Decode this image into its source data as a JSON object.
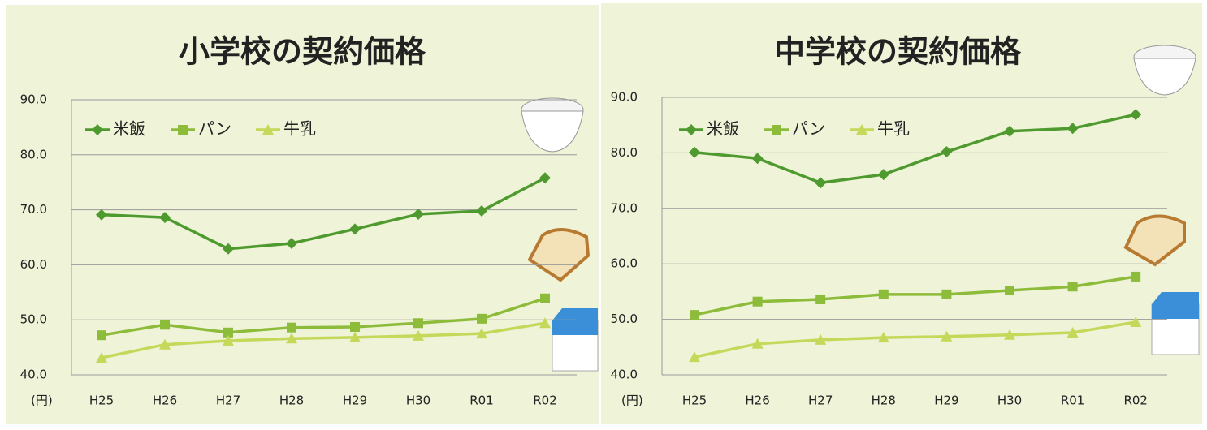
{
  "chart_data": [
    {
      "type": "line",
      "title": "小学校の契約価格",
      "unit_label": "(円)",
      "categories": [
        "H25",
        "H26",
        "H27",
        "H28",
        "H29",
        "H30",
        "R01",
        "R02"
      ],
      "ylim": [
        40,
        90
      ],
      "yticks": [
        {
          "value": 40,
          "label": "40.0"
        },
        {
          "value": 50,
          "label": "50.0"
        },
        {
          "value": 60,
          "label": "60.0"
        },
        {
          "value": 70,
          "label": "70.0"
        },
        {
          "value": 80,
          "label": "80.0"
        },
        {
          "value": 90,
          "label": "90.0"
        }
      ],
      "grid": true,
      "series": [
        {
          "name": "米飯",
          "color": "#4e9a2e",
          "marker": "diamond",
          "values": [
            69.1,
            68.6,
            62.9,
            63.9,
            66.5,
            69.2,
            69.8,
            75.8
          ]
        },
        {
          "name": "パン",
          "color": "#8dbb3a",
          "marker": "square",
          "values": [
            47.2,
            49.1,
            47.7,
            48.6,
            48.7,
            49.4,
            50.2,
            53.9
          ]
        },
        {
          "name": "牛乳",
          "color": "#c5d85a",
          "marker": "triangle",
          "values": [
            43.1,
            45.5,
            46.2,
            46.6,
            46.8,
            47.1,
            47.5,
            49.4
          ]
        }
      ]
    },
    {
      "type": "line",
      "title": "中学校の契約価格",
      "unit_label": "(円)",
      "categories": [
        "H25",
        "H26",
        "H27",
        "H28",
        "H29",
        "H30",
        "R01",
        "R02"
      ],
      "ylim": [
        40,
        90
      ],
      "yticks": [
        {
          "value": 40,
          "label": "40.0"
        },
        {
          "value": 50,
          "label": "50.0"
        },
        {
          "value": 60,
          "label": "60.0"
        },
        {
          "value": 70,
          "label": "70.0"
        },
        {
          "value": 80,
          "label": "80.0"
        },
        {
          "value": 90,
          "label": "90.0"
        }
      ],
      "grid": true,
      "series": [
        {
          "name": "米飯",
          "color": "#4e9a2e",
          "marker": "diamond",
          "values": [
            80.1,
            79.0,
            74.6,
            76.1,
            80.2,
            83.9,
            84.4,
            86.9
          ]
        },
        {
          "name": "パン",
          "color": "#8dbb3a",
          "marker": "square",
          "values": [
            50.8,
            53.2,
            53.6,
            54.5,
            54.5,
            55.2,
            55.9,
            57.7
          ]
        },
        {
          "name": "牛乳",
          "color": "#c5d85a",
          "marker": "triangle",
          "values": [
            43.2,
            45.6,
            46.3,
            46.7,
            46.9,
            47.2,
            47.6,
            49.5
          ]
        }
      ]
    }
  ]
}
